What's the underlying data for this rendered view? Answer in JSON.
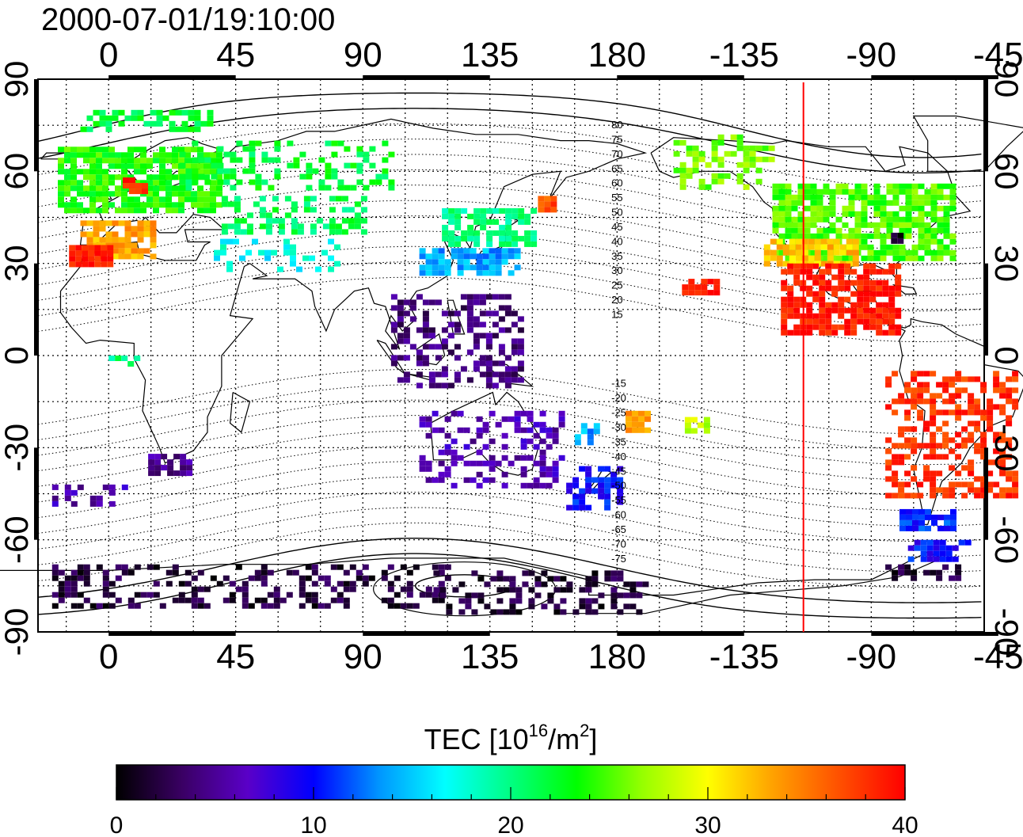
{
  "timestamp": "2000-07-01/19:10:00",
  "map": {
    "lon_ticks_top": [
      "0",
      "45",
      "90",
      "135",
      "180",
      "-135",
      "-90",
      "-45"
    ],
    "lon_ticks_bottom": [
      "0",
      "45",
      "90",
      "135",
      "180",
      "-135",
      "-90",
      "-45"
    ],
    "lat_ticks_left": [
      "90",
      "60",
      "30",
      "0",
      "-30",
      "-60",
      "-90"
    ],
    "lat_ticks_right": [
      "90",
      "60",
      "30",
      "0",
      "-30",
      "-60",
      "-90"
    ],
    "lon_range": [
      -25,
      310
    ],
    "lat_range": [
      -90,
      90
    ],
    "grid": true,
    "magnetic_latitude_labels": [
      "80",
      "75",
      "70",
      "65",
      "60",
      "55",
      "50",
      "45",
      "40",
      "35",
      "30",
      "25",
      "20",
      "15",
      "-15",
      "-20",
      "-25",
      "-30",
      "-35",
      "-40",
      "-45",
      "-50",
      "-55",
      "-60",
      "-65",
      "-70",
      "-75"
    ],
    "terminator_marker": {
      "longitude": -114,
      "color": "#ff0000"
    },
    "colors": {
      "frame": "#000000",
      "grid": "#000000",
      "coast": "#000000",
      "marker": "#ff0000"
    }
  },
  "colorbar": {
    "title_main": "TEC  [10",
    "title_exp1": "16",
    "title_mid": "/m",
    "title_exp2": "2",
    "title_end": "]",
    "min": 0,
    "max": 40,
    "tick_labels": [
      "0",
      "10",
      "20",
      "30",
      "40"
    ],
    "colors": [
      "#000000",
      "#3a0064",
      "#5a00c8",
      "#0000ff",
      "#0096ff",
      "#00ffff",
      "#00ff82",
      "#00ff00",
      "#96ff00",
      "#ffff00",
      "#ffa000",
      "#ff5000",
      "#ff0000"
    ]
  },
  "chart_data": {
    "type": "scatter",
    "title": "2000-07-01/19:10:00",
    "xlabel": "",
    "ylabel": "",
    "xlim": [
      -25,
      310
    ],
    "ylim": [
      -90,
      90
    ],
    "value_unit": "TEC [10^16/m^2]",
    "regions": [
      {
        "lon": [
          -18,
          40
        ],
        "lat": [
          48,
          68
        ],
        "tec": 24,
        "density": 0.8
      },
      {
        "lon": [
          -10,
          15
        ],
        "lat": [
          32,
          44
        ],
        "tec": 33,
        "density": 0.8
      },
      {
        "lon": [
          -14,
          0
        ],
        "lat": [
          30,
          36
        ],
        "tec": 39,
        "density": 0.9
      },
      {
        "lon": [
          5,
          12
        ],
        "lat": [
          54,
          58
        ],
        "tec": 39,
        "density": 0.7
      },
      {
        "lon": [
          -10,
          35
        ],
        "lat": [
          74,
          80
        ],
        "tec": 22,
        "density": 0.5
      },
      {
        "lon": [
          25,
          100
        ],
        "lat": [
          54,
          70
        ],
        "tec": 22,
        "density": 0.35
      },
      {
        "lon": [
          40,
          90
        ],
        "lat": [
          40,
          52
        ],
        "tec": 21,
        "density": 0.4
      },
      {
        "lon": [
          35,
          80
        ],
        "lat": [
          28,
          38
        ],
        "tec": 17,
        "density": 0.25
      },
      {
        "lon": [
          110,
          145
        ],
        "lat": [
          26,
          35
        ],
        "tec": 14,
        "density": 0.8
      },
      {
        "lon": [
          118,
          150
        ],
        "lat": [
          36,
          48
        ],
        "tec": 20,
        "density": 0.6
      },
      {
        "lon": [
          100,
          145
        ],
        "lat": [
          -10,
          20
        ],
        "tec": 4,
        "density": 0.45
      },
      {
        "lon": [
          110,
          160
        ],
        "lat": [
          -42,
          -18
        ],
        "tec": 6,
        "density": 0.4
      },
      {
        "lon": [
          162,
          182
        ],
        "lat": [
          -50,
          -36
        ],
        "tec": 10,
        "density": 0.6
      },
      {
        "lon": [
          165,
          172
        ],
        "lat": [
          -28,
          -22
        ],
        "tec": 14,
        "density": 0.7
      },
      {
        "lon": [
          14,
          28
        ],
        "lat": [
          -38,
          -32
        ],
        "tec": 5,
        "density": 0.7
      },
      {
        "lon": [
          -20,
          5
        ],
        "lat": [
          -48,
          -42
        ],
        "tec": 6,
        "density": 0.4
      },
      {
        "lon": [
          -20,
          120
        ],
        "lat": [
          -82,
          -68
        ],
        "tec": 2,
        "density": 0.35
      },
      {
        "lon": [
          115,
          190
        ],
        "lat": [
          -84,
          -70
        ],
        "tec": 2,
        "density": 0.35
      },
      {
        "lon": [
          235,
          300
        ],
        "lat": [
          32,
          56
        ],
        "tec": 25,
        "density": 0.75
      },
      {
        "lon": [
          232,
          265
        ],
        "lat": [
          30,
          38
        ],
        "tec": 32,
        "density": 0.8
      },
      {
        "lon": [
          238,
          280
        ],
        "lat": [
          8,
          30
        ],
        "tec": 39,
        "density": 0.7
      },
      {
        "lon": [
          200,
          235
        ],
        "lat": [
          55,
          72
        ],
        "tec": 26,
        "density": 0.45
      },
      {
        "lon": [
          203,
          215
        ],
        "lat": [
          20,
          25
        ],
        "tec": 39,
        "density": 0.8
      },
      {
        "lon": [
          275,
          320
        ],
        "lat": [
          -45,
          -5
        ],
        "tec": 38,
        "density": 0.45
      },
      {
        "lon": [
          280,
          300
        ],
        "lat": [
          -56,
          -50
        ],
        "tec": 11,
        "density": 0.8
      },
      {
        "lon": [
          283,
          305
        ],
        "lat": [
          -66,
          -60
        ],
        "tec": 10,
        "density": 0.8
      },
      {
        "lon": [
          275,
          300
        ],
        "lat": [
          -72,
          -68
        ],
        "tec": 2,
        "density": 0.5
      },
      {
        "lon": [
          183,
          190
        ],
        "lat": [
          -24,
          -18
        ],
        "tec": 34,
        "density": 0.7
      },
      {
        "lon": [
          204,
          212
        ],
        "lat": [
          -25,
          -20
        ],
        "tec": 28,
        "density": 0.7
      },
      {
        "lon": [
          277,
          281
        ],
        "lat": [
          38,
          40
        ],
        "tec": 1,
        "density": 1.0
      },
      {
        "lon": [
          0,
          10
        ],
        "lat": [
          -2,
          0
        ],
        "tec": 20,
        "density": 0.6
      },
      {
        "lon": 155,
        "lat": 50,
        "tec": 37,
        "density": 1.0
      }
    ]
  }
}
